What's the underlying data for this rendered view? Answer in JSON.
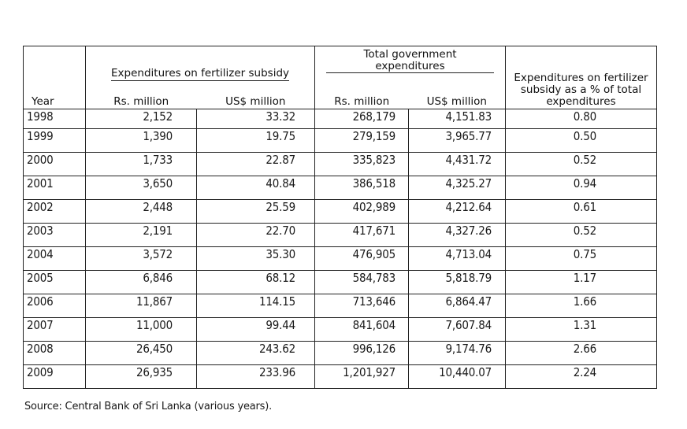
{
  "table": {
    "headers": {
      "year": "Year",
      "fertilizer_group": "Expenditures on fertilizer subsidy",
      "total_group": "Total government\nexpenditures",
      "pct": "Expenditures on fertilizer\nsubsidy as a % of total\nexpenditures",
      "rs_million": "Rs. million",
      "us_million": "US$ million"
    },
    "rows": [
      {
        "year": "1998",
        "fert_rs": "2,152",
        "fert_us": "33.32",
        "total_rs": "268,179",
        "total_us": "4,151.83",
        "pct": "0.80"
      },
      {
        "year": "1999",
        "fert_rs": "1,390",
        "fert_us": "19.75",
        "total_rs": "279,159",
        "total_us": "3,965.77",
        "pct": "0.50"
      },
      {
        "year": "2000",
        "fert_rs": "1,733",
        "fert_us": "22.87",
        "total_rs": "335,823",
        "total_us": "4,431.72",
        "pct": "0.52"
      },
      {
        "year": "2001",
        "fert_rs": "3,650",
        "fert_us": "40.84",
        "total_rs": "386,518",
        "total_us": "4,325.27",
        "pct": "0.94"
      },
      {
        "year": "2002",
        "fert_rs": "2,448",
        "fert_us": "25.59",
        "total_rs": "402,989",
        "total_us": "4,212.64",
        "pct": "0.61"
      },
      {
        "year": "2003",
        "fert_rs": "2,191",
        "fert_us": "22.70",
        "total_rs": "417,671",
        "total_us": "4,327.26",
        "pct": "0.52"
      },
      {
        "year": "2004",
        "fert_rs": "3,572",
        "fert_us": "35.30",
        "total_rs": "476,905",
        "total_us": "4,713.04",
        "pct": "0.75"
      },
      {
        "year": "2005",
        "fert_rs": "6,846",
        "fert_us": "68.12",
        "total_rs": "584,783",
        "total_us": "5,818.79",
        "pct": "1.17"
      },
      {
        "year": "2006",
        "fert_rs": "11,867",
        "fert_us": "114.15",
        "total_rs": "713,646",
        "total_us": "6,864.47",
        "pct": "1.66"
      },
      {
        "year": "2007",
        "fert_rs": "11,000",
        "fert_us": "99.44",
        "total_rs": "841,604",
        "total_us": "7,607.84",
        "pct": "1.31"
      },
      {
        "year": "2008",
        "fert_rs": "26,450",
        "fert_us": "243.62",
        "total_rs": "996,126",
        "total_us": "9,174.76",
        "pct": "2.66"
      },
      {
        "year": "2009",
        "fert_rs": "26,935",
        "fert_us": "233.96",
        "total_rs": "1,201,927",
        "total_us": "10,440.07",
        "pct": "2.24"
      }
    ]
  },
  "source": "Source: Central Bank of Sri Lanka (various years)."
}
